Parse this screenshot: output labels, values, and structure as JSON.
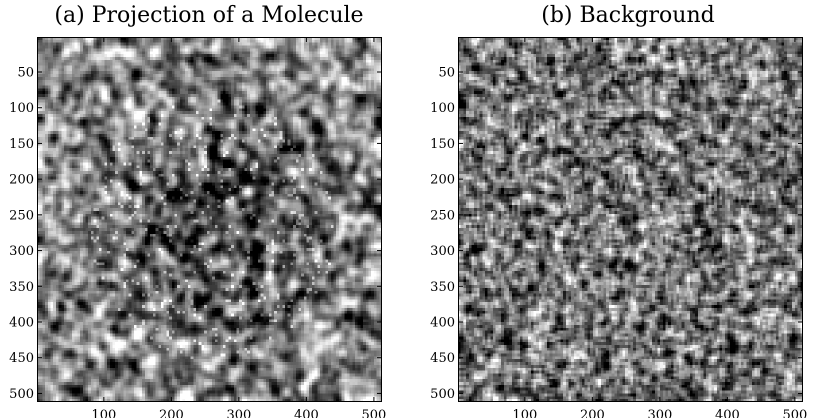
{
  "chart_data": [
    {
      "type": "heatmap",
      "title": "(a) Projection of a Molecule",
      "xlabel": "",
      "ylabel": "",
      "xlim": [
        1,
        512
      ],
      "ylim": [
        512,
        1
      ],
      "colormap": "gray",
      "xticks": [
        "100",
        "200",
        "300",
        "400",
        "500"
      ],
      "yticks": [
        "50",
        "100",
        "150",
        "200",
        "250",
        "300",
        "350",
        "400",
        "450",
        "500"
      ],
      "grid": false,
      "legend": "none"
    },
    {
      "type": "heatmap",
      "title": "(b) Background",
      "xlabel": "",
      "ylabel": "",
      "xlim": [
        1,
        512
      ],
      "ylim": [
        512,
        1
      ],
      "colormap": "gray",
      "xticks": [
        "100",
        "200",
        "300",
        "400",
        "500"
      ],
      "yticks": [
        "50",
        "100",
        "150",
        "200",
        "250",
        "300",
        "350",
        "400",
        "450",
        "500"
      ],
      "grid": false,
      "legend": "none"
    }
  ]
}
